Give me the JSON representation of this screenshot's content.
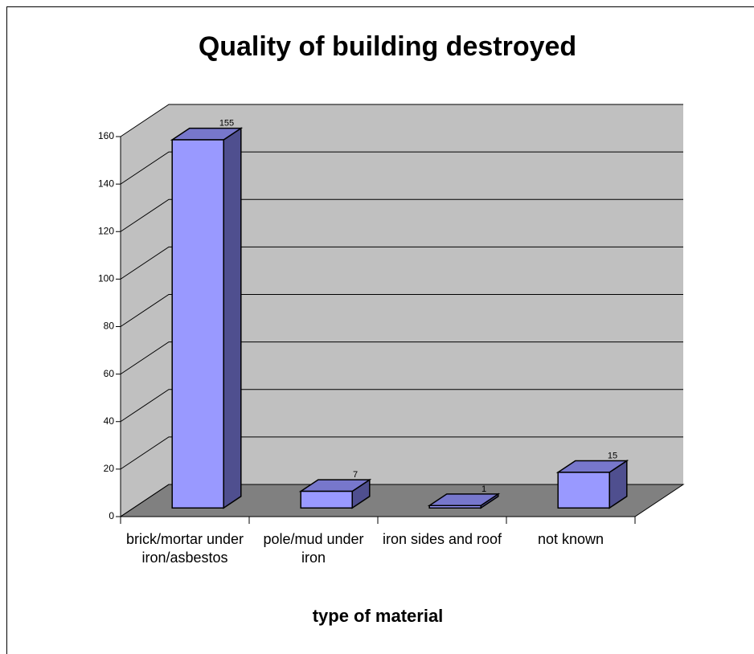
{
  "chart_data": {
    "type": "bar3d",
    "title": "Quality of building destroyed",
    "x_label": "type of material",
    "categories": [
      "brick/mortar under iron/asbestos",
      "pole/mud under iron",
      "iron sides and roof",
      "not known"
    ],
    "values": [
      155,
      7,
      1,
      15
    ],
    "color": "#9999ff",
    "ylim": [
      0,
      160
    ],
    "yticks": [
      0,
      20,
      40,
      60,
      80,
      100,
      120,
      140,
      160
    ],
    "grid": true
  }
}
